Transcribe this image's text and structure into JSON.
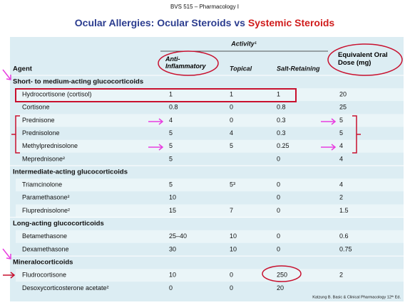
{
  "header": {
    "course": "BVS 515 – Pharmacology I",
    "title_part1": "Ocular Allergies: Ocular Steroids vs",
    "title_part2": "Systemic Steroids"
  },
  "table": {
    "group_header": "Activity¹",
    "columns": [
      "Agent",
      "Anti-Inflammatory",
      "Topical",
      "Salt-Retaining",
      "Equivalent Oral Dose (mg)"
    ],
    "rows": [
      {
        "section": "Short- to medium-acting glucocorticoids"
      },
      {
        "agent": "Hydrocortisone (cortisol)",
        "cells": [
          "1",
          "1",
          "1",
          "20"
        ]
      },
      {
        "agent": "Cortisone",
        "cells": [
          "0.8",
          "0",
          "0.8",
          "25"
        ]
      },
      {
        "agent": "Prednisone",
        "cells": [
          "4",
          "0",
          "0.3",
          "5"
        ]
      },
      {
        "agent": "Prednisolone",
        "cells": [
          "5",
          "4",
          "0.3",
          "5"
        ]
      },
      {
        "agent": "Methylprednisolone",
        "cells": [
          "5",
          "5",
          "0.25",
          "4"
        ]
      },
      {
        "agent": "Meprednisone²",
        "cells": [
          "5",
          null,
          "0",
          "4"
        ]
      },
      {
        "section": "Intermediate-acting glucocorticoids"
      },
      {
        "agent": "Triamcinolone",
        "cells": [
          "5",
          "5³",
          "0",
          "4"
        ]
      },
      {
        "agent": "Paramethasone²",
        "cells": [
          "10",
          null,
          "0",
          "2"
        ]
      },
      {
        "agent": "Fluprednisolone²",
        "cells": [
          "15",
          "7",
          "0",
          "1.5"
        ]
      },
      {
        "section": "Long-acting glucocorticoids"
      },
      {
        "agent": "Betamethasone",
        "cells": [
          "25–40",
          "10",
          "0",
          "0.6"
        ]
      },
      {
        "agent": "Dexamethasone",
        "cells": [
          "30",
          "10",
          "0",
          "0.75"
        ]
      },
      {
        "section": "Mineralocorticoids"
      },
      {
        "agent": "Fludrocortisone",
        "cells": [
          "10",
          "0",
          "250",
          "2"
        ]
      },
      {
        "agent": "Desoxycorticosterone acetate²",
        "cells": [
          "0",
          "0",
          "20",
          null
        ]
      }
    ]
  },
  "footnote": "Katzung B. Basic & Clinical Pharmacology 12ᵗʰ Ed."
}
